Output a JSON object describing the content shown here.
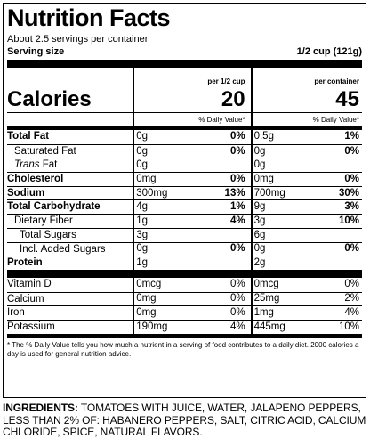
{
  "title": "Nutrition Facts",
  "servings": "About 2.5 servings per container",
  "serving_size_label": "Serving size",
  "serving_size_value": "1/2 cup (121g)",
  "col_per_serving": "per 1/2 cup",
  "col_per_container": "per container",
  "calories_label": "Calories",
  "calories_serving": "20",
  "calories_container": "45",
  "dv_header": "% Daily Value*",
  "nutrients": [
    {
      "name": "Total Fat",
      "a1": "0g",
      "p1": "0%",
      "a2": "0.5g",
      "p2": "1%"
    },
    {
      "name": "Saturated Fat",
      "a1": "0g",
      "p1": "0%",
      "a2": "0g",
      "p2": "0%"
    },
    {
      "name_italic": "Trans",
      "name_rest": " Fat",
      "a1": "0g",
      "p1": "",
      "a2": "0g",
      "p2": ""
    },
    {
      "name": "Cholesterol",
      "a1": "0mg",
      "p1": "0%",
      "a2": "0mg",
      "p2": "0%"
    },
    {
      "name": "Sodium",
      "a1": "300mg",
      "p1": "13%",
      "a2": "700mg",
      "p2": "30%"
    },
    {
      "name": "Total Carbohydrate",
      "a1": "4g",
      "p1": "1%",
      "a2": "9g",
      "p2": "3%"
    },
    {
      "name": "Dietary Fiber",
      "a1": "1g",
      "p1": "4%",
      "a2": "3g",
      "p2": "10%"
    },
    {
      "name": "Total Sugars",
      "a1": "3g",
      "p1": "",
      "a2": "6g",
      "p2": ""
    },
    {
      "name": "Incl. Added Sugars",
      "a1": "0g",
      "p1": "0%",
      "a2": "0g",
      "p2": "0%"
    },
    {
      "name": "Protein",
      "a1": "1g",
      "p1": "",
      "a2": "2g",
      "p2": ""
    }
  ],
  "vitamins": [
    {
      "name": "Vitamin D",
      "a1": "0mcg",
      "p1": "0%",
      "a2": "0mcg",
      "p2": "0%"
    },
    {
      "name": "Calcium",
      "a1": "0mg",
      "p1": "0%",
      "a2": "25mg",
      "p2": "2%"
    },
    {
      "name": "Iron",
      "a1": "0mg",
      "p1": "0%",
      "a2": "1mg",
      "p2": "4%"
    },
    {
      "name": "Potassium",
      "a1": "190mg",
      "p1": "4%",
      "a2": "445mg",
      "p2": "10%"
    }
  ],
  "footnote": "* The % Daily Value tells you how much a nutrient in a serving of food contributes to a daily diet. 2000 calories a day is used for general nutrition advice.",
  "ingredients_label": "INGREDIENTS:",
  "ingredients_text": " TOMATOES WITH JUICE, WATER, JALAPENO PEPPERS, LESS THAN 2% OF: HABANERO PEPPERS, SALT, CITRIC ACID, CALCIUM CHLORIDE, SPICE, NATURAL FLAVORS."
}
